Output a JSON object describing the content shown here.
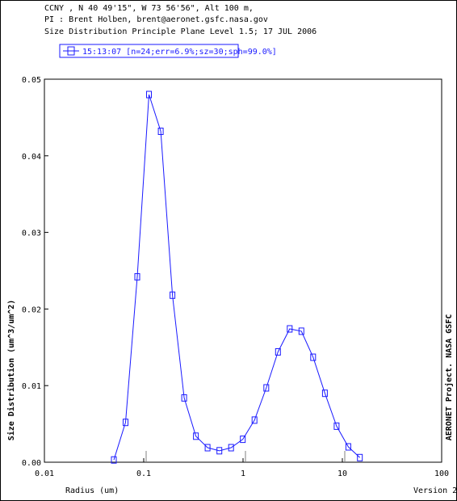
{
  "header": {
    "line1": "CCNY , N 40 49'15\", W 73 56'56\", Alt 100 m,",
    "line2": "PI : Brent Holben, brent@aeronet.gsfc.nasa.gov",
    "line3": "Size Distribution Principle Plane Level 1.5; 17 JUL 2006"
  },
  "footer": {
    "credit": "AERONET Project. NASA GSFC",
    "version": "Version 2"
  },
  "colors": {
    "series": "#1a1aff",
    "axis": "#000000",
    "tick": "#808080"
  },
  "chart_data": {
    "type": "line",
    "title": "",
    "xlabel": "Radius (um)",
    "ylabel": "Size Distribution (um^3/um^2)",
    "xscale": "log",
    "xlim": [
      0.01,
      100
    ],
    "ylim": [
      0.0,
      0.05
    ],
    "xticks": [
      0.01,
      0.1,
      1,
      10,
      100
    ],
    "xtick_labels": [
      "0.01",
      "0.1",
      "1",
      "10",
      "100"
    ],
    "yticks": [
      0.0,
      0.01,
      0.02,
      0.03,
      0.04,
      0.05
    ],
    "ytick_labels": [
      "0.00",
      "0.01",
      "0.02",
      "0.03",
      "0.04",
      "0.05"
    ],
    "grid": false,
    "legend_position": "top-left",
    "series": [
      {
        "name": "15:13:07 [n=24;err=6.9%;sz=30;sph=99.0%]",
        "marker": "square",
        "x": [
          0.05,
          0.0656,
          0.0861,
          0.113,
          0.1483,
          0.1946,
          0.2555,
          0.3353,
          0.44,
          0.5775,
          0.7579,
          0.9947,
          1.3054,
          1.7132,
          2.2484,
          2.9508,
          3.8727,
          5.0825,
          6.6703,
          8.7541,
          11.4888,
          15.0
        ],
        "y": [
          0.0003,
          0.0052,
          0.0242,
          0.048,
          0.0432,
          0.0218,
          0.0084,
          0.0034,
          0.0019,
          0.0015,
          0.0019,
          0.003,
          0.0055,
          0.0097,
          0.0144,
          0.0174,
          0.0171,
          0.0137,
          0.009,
          0.0047,
          0.002,
          0.0006
        ]
      }
    ],
    "ref_ticks_x": [
      0.1,
      1,
      10
    ]
  }
}
